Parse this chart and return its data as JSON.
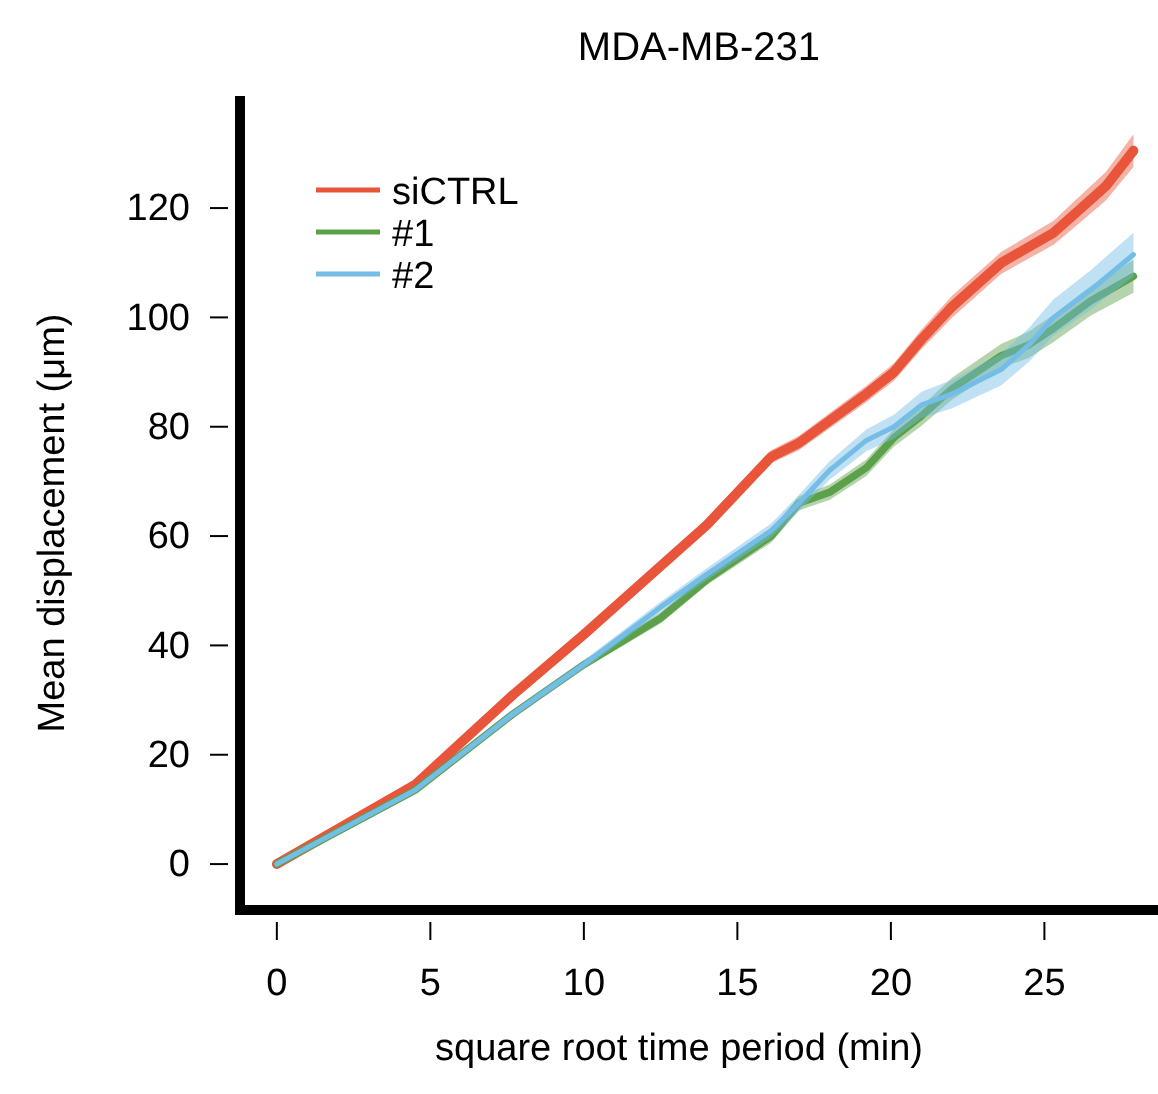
{
  "chart_data": {
    "type": "line",
    "title": "MDA-MB-231",
    "xlabel": "square root time period (min)",
    "ylabel": "Mean displacement (μm)",
    "xlim": [
      -1.2,
      28.7
    ],
    "xticks": [
      0,
      5,
      10,
      15,
      20,
      25
    ],
    "ylim": [
      -8.4,
      140.5
    ],
    "yticks": [
      0,
      20,
      40,
      60,
      80,
      100,
      120
    ],
    "grid": false,
    "legend": "top left",
    "line_style": "solid",
    "series": [
      {
        "name": "siCTRL",
        "color": "#e8553a",
        "x": [
          0,
          4.5,
          7.7,
          10,
          12.5,
          14,
          16.1,
          17,
          19.2,
          20.1,
          21,
          22,
          23.6,
          25.3,
          26,
          27,
          27.9
        ],
        "values": [
          0,
          14.5,
          31,
          42,
          54.5,
          62,
          74.5,
          77,
          86,
          90,
          96,
          102,
          110,
          115.5,
          119,
          124,
          130.5
        ],
        "lower": [
          0,
          14,
          30.3,
          41.2,
          53.5,
          61,
          73.3,
          75.7,
          84.5,
          88.4,
          94.2,
          100,
          108,
          113.3,
          116.6,
          121.4,
          127.5
        ],
        "upper": [
          0,
          15,
          31.7,
          42.8,
          55.5,
          63,
          75.7,
          78.3,
          87.5,
          91.6,
          97.8,
          104,
          112,
          117.7,
          121.4,
          126.6,
          133.5
        ]
      },
      {
        "name": "#1",
        "color": "#5ca04a",
        "x": [
          0,
          4.5,
          7.7,
          10,
          12.5,
          14,
          16.1,
          17,
          18,
          19.2,
          20.1,
          21,
          22,
          23.6,
          24.5,
          25.3,
          26.5,
          27.9
        ],
        "values": [
          0,
          13.5,
          27.5,
          36.5,
          45,
          52,
          60,
          66,
          68,
          72.5,
          78,
          82,
          87,
          93,
          95,
          98,
          103,
          107.5
        ],
        "lower": [
          0,
          13,
          26.8,
          35.7,
          44,
          51,
          58.8,
          64.7,
          66.6,
          71,
          76.4,
          80.2,
          85,
          90.8,
          92.6,
          95.5,
          100.3,
          104.5
        ],
        "upper": [
          0,
          14,
          28.2,
          37.3,
          46,
          53,
          61.2,
          67.3,
          69.4,
          74,
          79.6,
          83.8,
          89,
          95.2,
          97.4,
          100.5,
          105.7,
          110.5
        ]
      },
      {
        "name": "#2",
        "color": "#74bde6",
        "x": [
          0,
          4.5,
          7.7,
          10,
          12.5,
          14,
          16.1,
          17,
          18,
          19.2,
          20.1,
          21,
          22,
          23.6,
          24.5,
          25.3,
          26.5,
          27.9
        ],
        "values": [
          0,
          13.5,
          27.5,
          36.5,
          47,
          53,
          61,
          66,
          72,
          77.5,
          80,
          84,
          86,
          90.5,
          95,
          100,
          105,
          111.5
        ],
        "lower": [
          0,
          13,
          26.8,
          35.7,
          46,
          51.9,
          59.7,
          64.5,
          70.3,
          75.5,
          77.8,
          81.6,
          83.4,
          87.6,
          91.9,
          96.7,
          101.4,
          107.5
        ],
        "upper": [
          0,
          14,
          28.2,
          37.3,
          48,
          54.1,
          62.3,
          67.5,
          73.7,
          79.5,
          82.2,
          86.4,
          88.6,
          93.4,
          98.1,
          103.3,
          108.6,
          115.5
        ]
      }
    ]
  }
}
